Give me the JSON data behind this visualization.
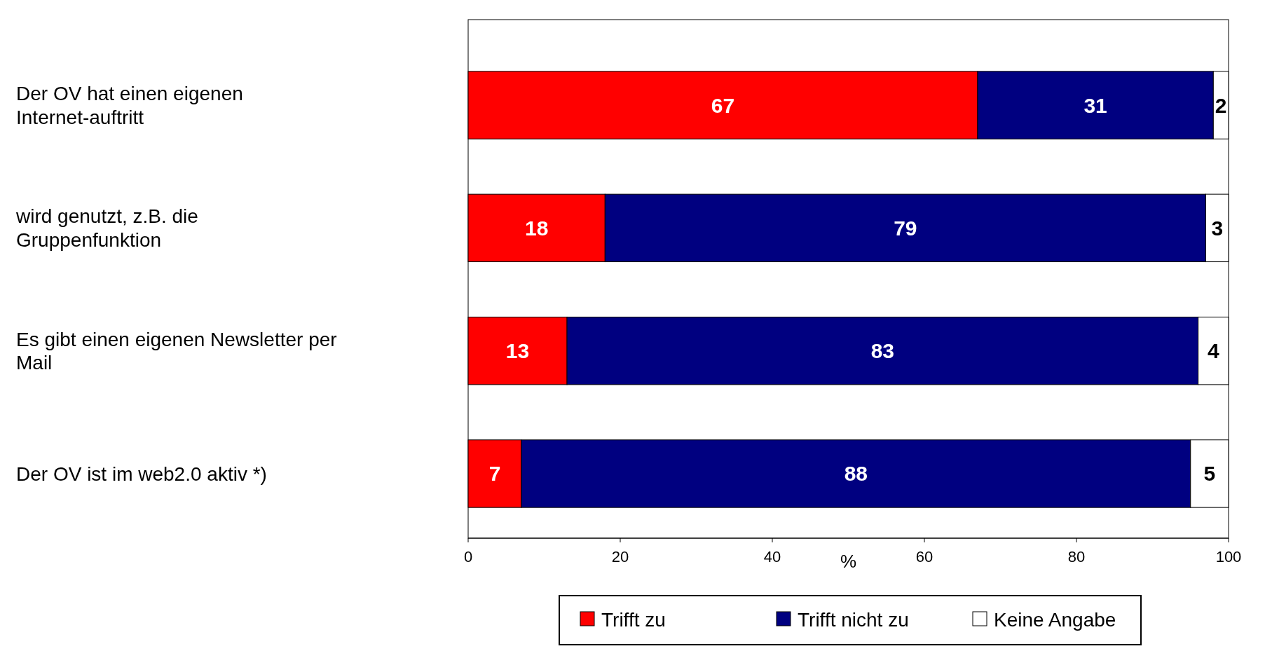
{
  "chart_data": {
    "type": "bar",
    "orientation": "horizontal",
    "stacked": true,
    "categories": [
      "Der OV hat einen eigenen Internet-auftritt",
      "wird genutzt, z.B. die Gruppenfunktion",
      "Es gibt einen eigenen Newsletter per Mail",
      "Der OV ist im web2.0 aktiv *)"
    ],
    "series": [
      {
        "name": "Trifft zu",
        "color": "#ff0000",
        "values": [
          67,
          18,
          13,
          7
        ]
      },
      {
        "name": "Trifft nicht zu",
        "color": "#000080",
        "values": [
          31,
          79,
          83,
          88
        ]
      },
      {
        "name": "Keine Angabe",
        "color": "#ffffff",
        "values": [
          2,
          3,
          4,
          5
        ]
      }
    ],
    "xlim": [
      0,
      100
    ],
    "xticks": [
      0,
      20,
      40,
      60,
      80,
      100
    ],
    "xlabel": "%",
    "data_labels": true,
    "legend": "bottom",
    "grid": false
  }
}
